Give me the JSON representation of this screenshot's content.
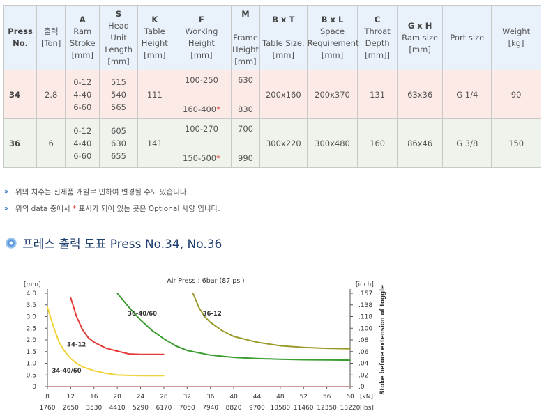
{
  "table": {
    "headers": {
      "press": "Press",
      "no": "No.",
      "ton_a": "출력",
      "ton_b": "[Ton]",
      "a_key": "A",
      "a_l1": "Ram",
      "a_l2": "Stroke",
      "a_l3": "[mm]",
      "s_key": "S",
      "s_l1": "Head",
      "s_l2": "Unit",
      "s_l3": "Length",
      "s_l4": "[mm]",
      "k_key": "K",
      "k_l1": "Table",
      "k_l2": "Height",
      "k_l3": "[mm]",
      "f_key": "F",
      "f_l1": "Working Height",
      "f_l2": "[mm]",
      "m_key": "M",
      "m_l1": "Frame",
      "m_l2": "Height",
      "m_l3": "[mm]",
      "bt_key": "B x T",
      "bt_l1": "Table Size.",
      "bt_l2": "[mm]",
      "bl_key": "B x L",
      "bl_l1": "Space",
      "bl_l2": "Requirement",
      "bl_l3": "[mm]",
      "c_key": "C",
      "c_l1": "Throat",
      "c_l2": "Depth",
      "c_l3": "[mm]]",
      "gh_key": "G x H",
      "gh_l1": "Ram size",
      "gh_l2": "[mm]",
      "port": "Port size",
      "w_l1": "Weight",
      "w_l2": "[kg]"
    },
    "rows": [
      {
        "model": "34",
        "ton": "2.8",
        "stroke": [
          "0-12",
          "4-40",
          "6-60"
        ],
        "head": [
          "515",
          "540",
          "565"
        ],
        "table_height": "111",
        "work_top": "100-250",
        "work_bot": "160-400",
        "work_star": "*",
        "frame_top": "630",
        "frame_bot": "830",
        "table_size": "200x160",
        "space": "200x370",
        "throat": "131",
        "ram_size": "63x36",
        "port": "G 1/4",
        "weight": "90"
      },
      {
        "model": "36",
        "ton": "6",
        "stroke": [
          "0-12",
          "4-40",
          "6-60"
        ],
        "head": [
          "605",
          "630",
          "655"
        ],
        "table_height": "141",
        "work_top": "100-270",
        "work_bot": "150-500",
        "work_star": "*",
        "frame_top": "700",
        "frame_bot": "990",
        "table_size": "300x220",
        "space": "300x480",
        "throat": "160",
        "ram_size": "86x46",
        "port": "G 3/8",
        "weight": "150"
      }
    ]
  },
  "notes": {
    "bullet": "››",
    "n1": "위의 치수는 신제품 개발로 인하여 변경될 수도 있습니다.",
    "n2_a": "위의 data 중에서 ",
    "n2_star": "*",
    "n2_b": " 표시가 되어 있는 곳은 Optional 사양 입니다."
  },
  "section": {
    "title": "프레스 출력 도표 Press No.34, No.36"
  },
  "chart_data": {
    "type": "line",
    "title": "Air Press : 6bar (87 psi)",
    "x_ticks_kn": [
      "8",
      "12",
      "16",
      "20",
      "24",
      "28",
      "32",
      "36",
      "40",
      "44",
      "48",
      "52",
      "56",
      "60"
    ],
    "x_ticks_lbs": [
      "1760",
      "2650",
      "3530",
      "4410",
      "5290",
      "6170",
      "7050",
      "7940",
      "8820",
      "9700",
      "10580",
      "11460",
      "12350",
      "13220"
    ],
    "x_unit_kn": "[kN]",
    "x_unit_lbs": "[lbs]",
    "xlim": [
      8,
      60
    ],
    "y_ticks_mm": [
      "0",
      "0.5",
      "1.0",
      "1.5",
      "2.0",
      "2.5",
      "3.0",
      "3.5",
      "4.0"
    ],
    "y_unit_mm": "[mm]",
    "ylim": [
      0,
      4
    ],
    "y_ticks_inch": [
      ".157",
      ".138",
      ".118",
      ".100",
      ".08",
      ".06",
      ".04",
      ".02",
      ".0"
    ],
    "y_unit_inch": "[inch]",
    "right_label": "Stoke before extension of toggle",
    "grid": false,
    "series": [
      {
        "name": "34-40/60",
        "color": "#f2d33a",
        "x": [
          8,
          9,
          10,
          11,
          12,
          13,
          14,
          16,
          18,
          20,
          22,
          24,
          26,
          28
        ],
        "y": [
          3.4,
          2.6,
          1.9,
          1.5,
          1.2,
          1.0,
          0.85,
          0.68,
          0.57,
          0.5,
          0.48,
          0.47,
          0.47,
          0.47
        ]
      },
      {
        "name": "34-12",
        "color": "#e43a3a",
        "x": [
          12,
          13,
          14,
          15,
          16,
          18,
          20,
          22,
          24,
          26,
          28
        ],
        "y": [
          3.8,
          3.0,
          2.45,
          2.1,
          1.9,
          1.65,
          1.52,
          1.4,
          1.38,
          1.38,
          1.38
        ]
      },
      {
        "name": "36-40/60",
        "color": "#3a9b2f",
        "x": [
          20,
          22,
          24,
          26,
          28,
          30,
          32,
          36,
          40,
          44,
          48,
          52,
          56,
          60
        ],
        "y": [
          4.0,
          3.4,
          2.85,
          2.4,
          2.05,
          1.75,
          1.55,
          1.35,
          1.25,
          1.2,
          1.17,
          1.15,
          1.14,
          1.13
        ]
      },
      {
        "name": "36-12",
        "color": "#9a9a2a",
        "x": [
          33,
          34,
          35,
          36,
          38,
          40,
          44,
          48,
          52,
          56,
          60
        ],
        "y": [
          4.0,
          3.4,
          3.0,
          2.75,
          2.4,
          2.15,
          1.9,
          1.75,
          1.68,
          1.64,
          1.62
        ]
      },
      {
        "name": "",
        "color": "#c07a7a",
        "x": [
          8,
          60
        ],
        "y": [
          0.0,
          0.0
        ]
      }
    ]
  }
}
